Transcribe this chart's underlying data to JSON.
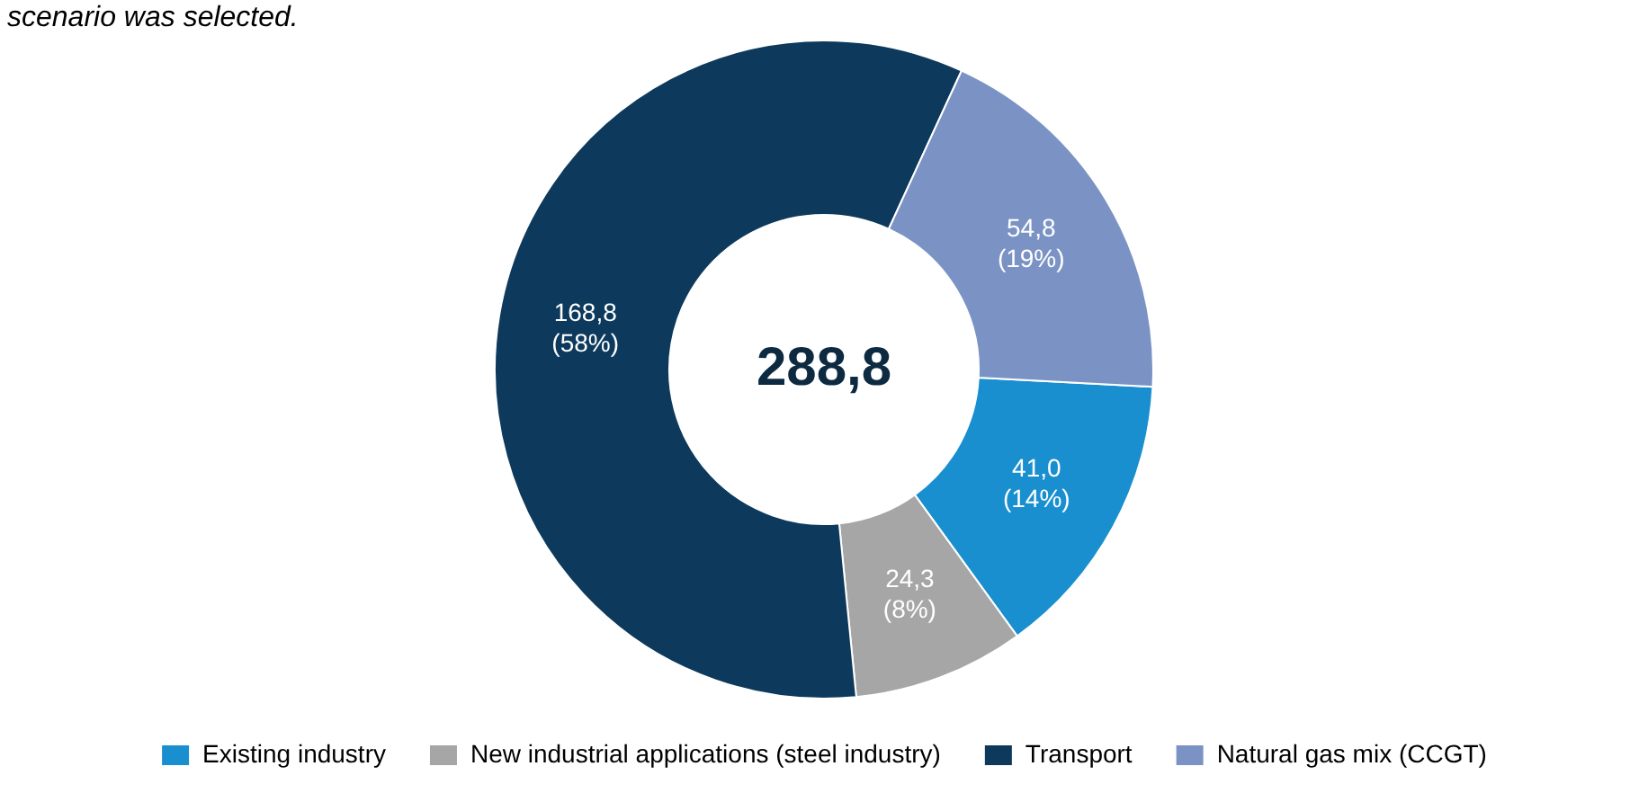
{
  "chart_data": {
    "type": "donut",
    "categories": [
      "Existing industry",
      "New industrial applications (steel industry)",
      "Transport",
      "Natural gas mix (CCGT)"
    ],
    "values": [
      41.0,
      24.3,
      168.8,
      54.8
    ],
    "value_labels": [
      "41,0 (14%)",
      "24,3 (8%)",
      "168,8 (58%)",
      "54,8 (19%)"
    ],
    "colors": [
      "#1a8fd0",
      "#a6a6a6",
      "#0d3a5c",
      "#7b93c4"
    ],
    "legend": "bottom",
    "annotations": [
      "scenario was selected.",
      "288,8"
    ]
  }
}
